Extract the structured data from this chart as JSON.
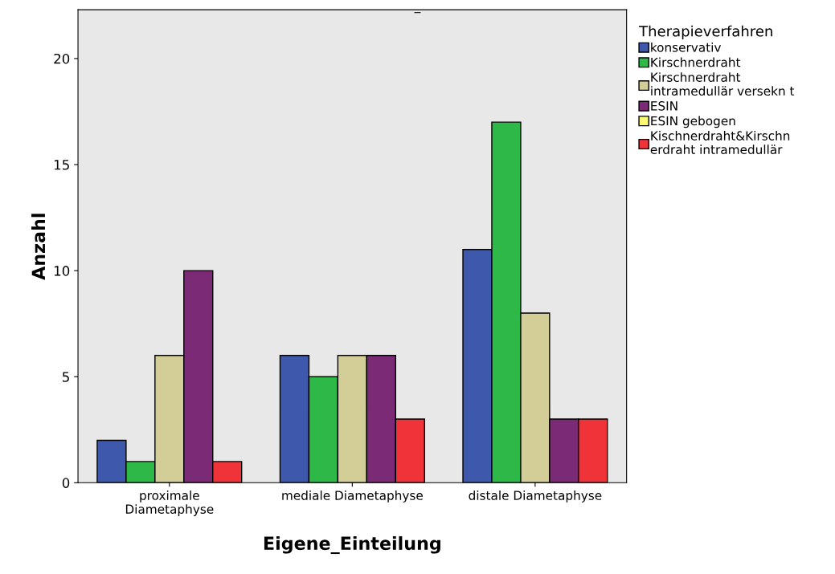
{
  "chart_data": {
    "type": "bar",
    "title": "_",
    "xlabel": "Eigene_Einteilung",
    "ylabel": "Anzahl",
    "legend_title": "Therapieverfahren",
    "categories": [
      "proximale\nDiametaphyse",
      "mediale Diametaphyse",
      "distale Diametaphyse"
    ],
    "series": [
      {
        "name": "konservativ",
        "color": "#3e58ac",
        "values": [
          2,
          6,
          11
        ]
      },
      {
        "name": "Kirschnerdraht",
        "color": "#2eb848",
        "values": [
          1,
          5,
          17
        ]
      },
      {
        "name": "Kirschnerdraht\nintramedullär versekn t",
        "color": "#d3ce97",
        "values": [
          6,
          6,
          8
        ]
      },
      {
        "name": "ESIN",
        "color": "#7b2a75",
        "values": [
          10,
          6,
          3
        ]
      },
      {
        "name": "ESIN gebogen",
        "color": "#fbf873",
        "values": [
          null,
          null,
          null
        ]
      },
      {
        "name": "Kischnerdraht&Kirschn\nerdraht intramedullär",
        "color": "#ef3338",
        "values": [
          1,
          3,
          3
        ]
      }
    ],
    "ylim": [
      0,
      22.3
    ],
    "yticks": [
      0,
      5,
      10,
      15,
      20
    ],
    "grid": false,
    "legend": "right"
  }
}
